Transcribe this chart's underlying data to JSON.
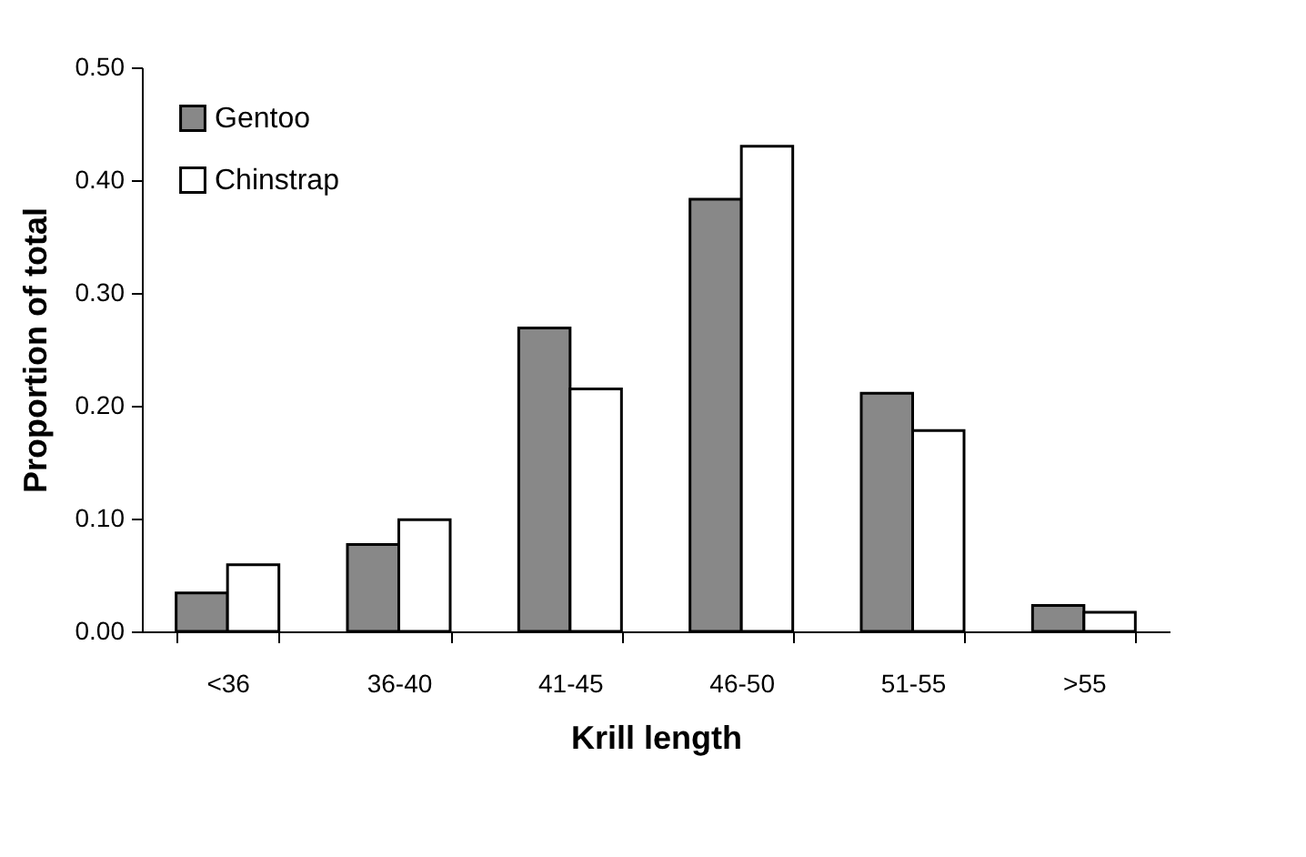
{
  "chart_data": {
    "type": "bar",
    "xlabel": "Krill length",
    "ylabel": "Proportion of total",
    "categories": [
      "<36",
      "36-40",
      "41-45",
      "46-50",
      "51-55",
      ">55"
    ],
    "series": [
      {
        "name": "Gentoo",
        "color": "#888888",
        "values": [
          0.034,
          0.077,
          0.269,
          0.383,
          0.211,
          0.023
        ]
      },
      {
        "name": "Chinstrap",
        "color": "#ffffff",
        "values": [
          0.059,
          0.099,
          0.215,
          0.43,
          0.178,
          0.017
        ]
      }
    ],
    "ylim": [
      0,
      0.5
    ],
    "yticks": [
      {
        "value": 0,
        "label": "0.00"
      },
      {
        "value": 0.1,
        "label": "0.10"
      },
      {
        "value": 0.2,
        "label": "0.20"
      },
      {
        "value": 0.3,
        "label": "0.30"
      },
      {
        "value": 0.4,
        "label": "0.40"
      },
      {
        "value": 0.5,
        "label": "0.50"
      }
    ],
    "grid": false,
    "legend": "top left"
  }
}
